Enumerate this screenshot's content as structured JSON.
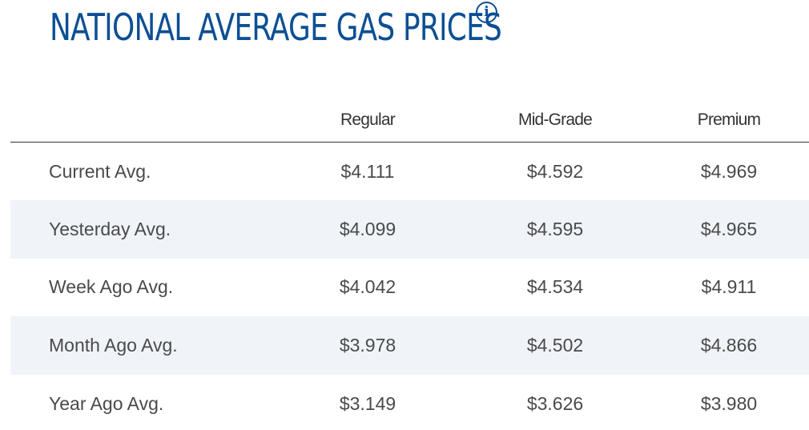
{
  "title": "NATIONAL AVERAGE GAS PRICES",
  "info_icon_glyph": "i",
  "columns": [
    "",
    "Regular",
    "Mid-Grade",
    "Premium"
  ],
  "rows": [
    {
      "label": "Current Avg.",
      "regular": "$4.111",
      "mid_grade": "$4.592",
      "premium": "$4.969"
    },
    {
      "label": "Yesterday Avg.",
      "regular": "$4.099",
      "mid_grade": "$4.595",
      "premium": "$4.965"
    },
    {
      "label": "Week Ago Avg.",
      "regular": "$4.042",
      "mid_grade": "$4.534",
      "premium": "$4.911"
    },
    {
      "label": "Month Ago Avg.",
      "regular": "$3.978",
      "mid_grade": "$4.502",
      "premium": "$4.866"
    },
    {
      "label": "Year Ago Avg.",
      "regular": "$3.149",
      "mid_grade": "$3.626",
      "premium": "$3.980"
    }
  ],
  "colors": {
    "title": "#0c4f94",
    "text": "#4a4a4a",
    "striped_row": "#f0f4f8"
  }
}
